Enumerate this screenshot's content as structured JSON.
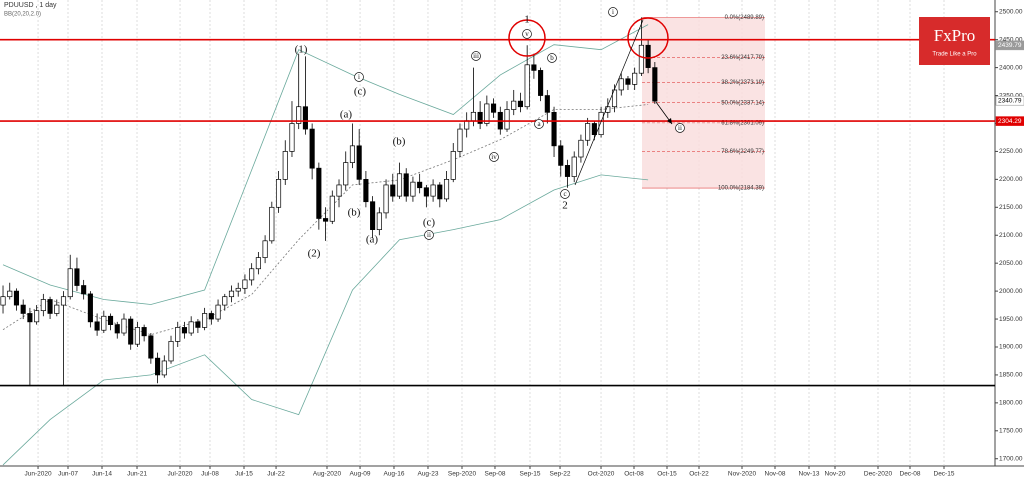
{
  "chart_data": {
    "type": "candlestick",
    "title": "PDUUSD , 1 day",
    "subtitle": "BB(20,20,2.0)",
    "brand": {
      "name": "FxPro",
      "tagline": "Trade Like a Pro"
    },
    "xlim": [
      -0.45,
      147.62
    ],
    "ylim": [
      1687,
      2521
    ],
    "xticks": [
      {
        "value": 5.21,
        "label": "Jun-2020"
      },
      {
        "value": 9.67,
        "label": "Jun-07"
      },
      {
        "value": 14.73,
        "label": "Jun-14"
      },
      {
        "value": 19.94,
        "label": "Jun-21"
      },
      {
        "value": 26.34,
        "label": "Jul-2020"
      },
      {
        "value": 30.8,
        "label": "Jul-08"
      },
      {
        "value": 35.86,
        "label": "Jul-15"
      },
      {
        "value": 40.63,
        "label": "Jul-22"
      },
      {
        "value": 48.21,
        "label": "Aug-2020"
      },
      {
        "value": 53.13,
        "label": "Aug-09"
      },
      {
        "value": 58.18,
        "label": "Aug-16"
      },
      {
        "value": 63.24,
        "label": "Aug-23"
      },
      {
        "value": 68.3,
        "label": "Sep-2020"
      },
      {
        "value": 73.21,
        "label": "Sep-08"
      },
      {
        "value": 78.42,
        "label": "Sep-15"
      },
      {
        "value": 82.89,
        "label": "Sep-22"
      },
      {
        "value": 88.99,
        "label": "Oct-2020"
      },
      {
        "value": 93.9,
        "label": "Oct-08"
      },
      {
        "value": 98.81,
        "label": "Oct-15"
      },
      {
        "value": 103.57,
        "label": "Oct-22"
      },
      {
        "value": 109.97,
        "label": "Nov-2020"
      },
      {
        "value": 114.88,
        "label": "Nov-08"
      },
      {
        "value": 119.94,
        "label": "Nov-13"
      },
      {
        "value": 123.81,
        "label": "Nov-20"
      },
      {
        "value": 130.21,
        "label": "Dec-2020"
      },
      {
        "value": 134.97,
        "label": "Dec-08"
      },
      {
        "value": 140.03,
        "label": "Dec-15"
      }
    ],
    "yticks": [
      {
        "value": 1700,
        "label": "1700.00"
      },
      {
        "value": 1750,
        "label": "1750.00"
      },
      {
        "value": 1800,
        "label": "1800.00"
      },
      {
        "value": 1850,
        "label": "1850.00"
      },
      {
        "value": 1900,
        "label": "1900.00"
      },
      {
        "value": 1950,
        "label": "1950.00"
      },
      {
        "value": 2000,
        "label": "2000.00"
      },
      {
        "value": 2050,
        "label": "2050.00"
      },
      {
        "value": 2100,
        "label": "2100.00"
      },
      {
        "value": 2150,
        "label": "2150.00"
      },
      {
        "value": 2200,
        "label": "2200.00"
      },
      {
        "value": 2250,
        "label": "2250.00"
      },
      {
        "value": 2300,
        "label": "2300.00"
      },
      {
        "value": 2350,
        "label": "2350.00"
      },
      {
        "value": 2400,
        "label": "2400.00"
      },
      {
        "value": 2450,
        "label": "2450.00"
      },
      {
        "value": 2500,
        "label": "2500.00"
      }
    ],
    "ohlc": [
      [
        1975,
        2010,
        1960,
        1990
      ],
      [
        1990,
        2015,
        1985,
        2000
      ],
      [
        2000,
        2005,
        1965,
        1975
      ],
      [
        1975,
        1985,
        1950,
        1960
      ],
      [
        1960,
        1970,
        1830,
        1945
      ],
      [
        1945,
        1975,
        1940,
        1965
      ],
      [
        1965,
        1995,
        1955,
        1985
      ],
      [
        1985,
        1990,
        1950,
        1960
      ],
      [
        1960,
        1985,
        1955,
        1975
      ],
      [
        1975,
        2000,
        1830,
        1990
      ],
      [
        1990,
        2065,
        1985,
        2040
      ],
      [
        2040,
        2060,
        2000,
        2010
      ],
      [
        2010,
        2020,
        1985,
        1995
      ],
      [
        1995,
        2000,
        1935,
        1945
      ],
      [
        1945,
        1960,
        1920,
        1930
      ],
      [
        1930,
        1965,
        1925,
        1955
      ],
      [
        1955,
        1960,
        1930,
        1940
      ],
      [
        1940,
        1945,
        1915,
        1925
      ],
      [
        1925,
        1960,
        1920,
        1950
      ],
      [
        1950,
        1955,
        1895,
        1905
      ],
      [
        1905,
        1945,
        1900,
        1935
      ],
      [
        1935,
        1940,
        1910,
        1920
      ],
      [
        1920,
        1925,
        1870,
        1880
      ],
      [
        1880,
        1890,
        1835,
        1850
      ],
      [
        1850,
        1885,
        1845,
        1875
      ],
      [
        1875,
        1920,
        1870,
        1910
      ],
      [
        1910,
        1945,
        1900,
        1935
      ],
      [
        1935,
        1945,
        1915,
        1925
      ],
      [
        1925,
        1955,
        1920,
        1945
      ],
      [
        1945,
        1950,
        1925,
        1935
      ],
      [
        1935,
        1970,
        1930,
        1960
      ],
      [
        1960,
        1965,
        1940,
        1950
      ],
      [
        1950,
        1985,
        1945,
        1975
      ],
      [
        1975,
        1995,
        1965,
        1990
      ],
      [
        1990,
        2010,
        1980,
        2000
      ],
      [
        2000,
        2015,
        1990,
        2005
      ],
      [
        2005,
        2030,
        1995,
        2020
      ],
      [
        2020,
        2050,
        2010,
        2040
      ],
      [
        2040,
        2070,
        2030,
        2060
      ],
      [
        2060,
        2100,
        2050,
        2090
      ],
      [
        2090,
        2160,
        2085,
        2150
      ],
      [
        2150,
        2215,
        2140,
        2200
      ],
      [
        2200,
        2270,
        2190,
        2250
      ],
      [
        2250,
        2340,
        2240,
        2300
      ],
      [
        2300,
        2425,
        2290,
        2330
      ],
      [
        2330,
        2420,
        2280,
        2290
      ],
      [
        2290,
        2300,
        2200,
        2220
      ],
      [
        2220,
        2230,
        2110,
        2130
      ],
      [
        2130,
        2150,
        2090,
        2125
      ],
      [
        2125,
        2180,
        2120,
        2170
      ],
      [
        2170,
        2200,
        2150,
        2190
      ],
      [
        2190,
        2250,
        2180,
        2230
      ],
      [
        2230,
        2300,
        2220,
        2260
      ],
      [
        2260,
        2290,
        2190,
        2200
      ],
      [
        2200,
        2215,
        2150,
        2160
      ],
      [
        2160,
        2170,
        2095,
        2110
      ],
      [
        2110,
        2150,
        2100,
        2140
      ],
      [
        2140,
        2200,
        2130,
        2190
      ],
      [
        2190,
        2210,
        2160,
        2170
      ],
      [
        2170,
        2230,
        2165,
        2210
      ],
      [
        2210,
        2220,
        2160,
        2170
      ],
      [
        2170,
        2205,
        2160,
        2195
      ],
      [
        2195,
        2210,
        2175,
        2185
      ],
      [
        2185,
        2190,
        2150,
        2170
      ],
      [
        2170,
        2200,
        2160,
        2190
      ],
      [
        2190,
        2195,
        2150,
        2165
      ],
      [
        2165,
        2215,
        2160,
        2200
      ],
      [
        2200,
        2265,
        2195,
        2250
      ],
      [
        2250,
        2300,
        2240,
        2290
      ],
      [
        2290,
        2320,
        2275,
        2305
      ],
      [
        2305,
        2400,
        2295,
        2320
      ],
      [
        2320,
        2340,
        2290,
        2300
      ],
      [
        2300,
        2350,
        2295,
        2335
      ],
      [
        2335,
        2345,
        2310,
        2320
      ],
      [
        2320,
        2330,
        2280,
        2290
      ],
      [
        2290,
        2340,
        2285,
        2325
      ],
      [
        2325,
        2360,
        2315,
        2340
      ],
      [
        2340,
        2355,
        2320,
        2330
      ],
      [
        2330,
        2440,
        2325,
        2405
      ],
      [
        2405,
        2425,
        2380,
        2395
      ],
      [
        2395,
        2400,
        2340,
        2350
      ],
      [
        2350,
        2360,
        2300,
        2320
      ],
      [
        2320,
        2330,
        2240,
        2260
      ],
      [
        2260,
        2270,
        2205,
        2225
      ],
      [
        2225,
        2235,
        2185,
        2205
      ],
      [
        2205,
        2250,
        2195,
        2240
      ],
      [
        2240,
        2280,
        2230,
        2270
      ],
      [
        2270,
        2310,
        2260,
        2300
      ],
      [
        2300,
        2305,
        2270,
        2280
      ],
      [
        2280,
        2330,
        2275,
        2320
      ],
      [
        2320,
        2345,
        2310,
        2330
      ],
      [
        2330,
        2370,
        2320,
        2360
      ],
      [
        2360,
        2390,
        2350,
        2380
      ],
      [
        2380,
        2385,
        2360,
        2370
      ],
      [
        2370,
        2400,
        2360,
        2390
      ],
      [
        2390,
        2490,
        2385,
        2440
      ],
      [
        2440,
        2450,
        2390,
        2400
      ],
      [
        2400,
        2410,
        2335,
        2340
      ]
    ],
    "bands": [
      {
        "color": "#6aa99c",
        "x": [
          0,
          7,
          15,
          22,
          30,
          37,
          44,
          52,
          59,
          67,
          74,
          82,
          89,
          96
        ],
        "values": [
          2047,
          2011,
          1985,
          1976,
          2002,
          2217,
          2432,
          2387,
          2352,
          2316,
          2387,
          2441,
          2432,
          2477
        ]
      },
      {
        "color": "#777777",
        "x": [
          0,
          7,
          15,
          22,
          30,
          37,
          44,
          52,
          59,
          67,
          74,
          82,
          89,
          96
        ],
        "values": [
          1931,
          1985,
          1949,
          1922,
          1949,
          1994,
          2092,
          2190,
          2199,
          2235,
          2271,
          2325,
          2325,
          2334
        ]
      },
      {
        "color": "#6aa99c",
        "x": [
          0,
          7,
          15,
          22,
          30,
          37,
          44,
          52,
          59,
          67,
          74,
          82,
          89,
          96
        ],
        "values": [
          1689,
          1770,
          1841,
          1850,
          1886,
          1806,
          1779,
          2002,
          2092,
          2110,
          2128,
          2181,
          2208,
          2199
        ]
      }
    ],
    "hlines": [
      {
        "value": 2450,
        "color": "#e00000"
      },
      {
        "value": 2304.29,
        "color": "#e00000"
      },
      {
        "value": 1831,
        "color": "#000000"
      }
    ],
    "price_tags": [
      {
        "value": 2439.79,
        "color": "#9a9a9a"
      },
      {
        "value": 2340.79,
        "color": "#ffffff"
      },
      {
        "value": 2304.29,
        "color": "#e00000"
      }
    ],
    "fib_levels": [
      {
        "value": 2489.89,
        "label": "0.0%(2489.89)"
      },
      {
        "value": 2417.79,
        "label": "23.6%(2417.79)"
      },
      {
        "value": 2373.19,
        "label": "38.2%(2373.19)"
      },
      {
        "value": 2337.14,
        "label": "50.0%(2337.14)"
      },
      {
        "value": 2301.09,
        "label": "61.8%(2301.09)"
      },
      {
        "value": 2249.77,
        "label": "78.6%(2249.77)"
      },
      {
        "value": 2184.39,
        "label": "100.0%(2184.39)"
      }
    ],
    "annotations": [
      "(1)",
      "(2)",
      "1",
      "2",
      "(a)",
      "(b)",
      "(c)",
      "i",
      "(a)",
      "(b)",
      "(c)",
      "ii",
      "iii",
      "iv",
      "v",
      "b",
      "a",
      "c",
      "i",
      "ii"
    ]
  }
}
